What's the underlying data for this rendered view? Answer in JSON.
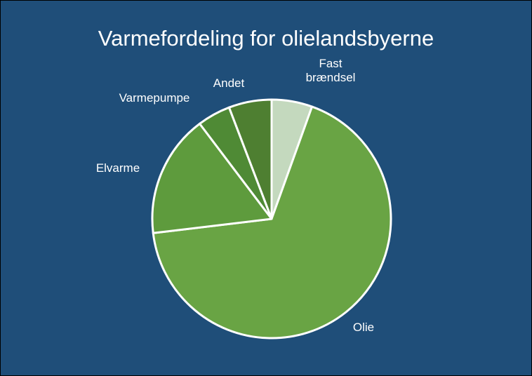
{
  "chart_data": {
    "type": "pie",
    "title": "Varmefordeling for olielandsbyerne",
    "categories": [
      "Fast brændsel",
      "Olie",
      "Elvarme",
      "Varmepumpe",
      "Andet"
    ],
    "values": [
      5.5,
      67.6,
      16.6,
      4.5,
      5.8
    ],
    "colors": [
      "#c4d9be",
      "#69a444",
      "#5e9b3d",
      "#4f8a35",
      "#4e7f31"
    ]
  }
}
